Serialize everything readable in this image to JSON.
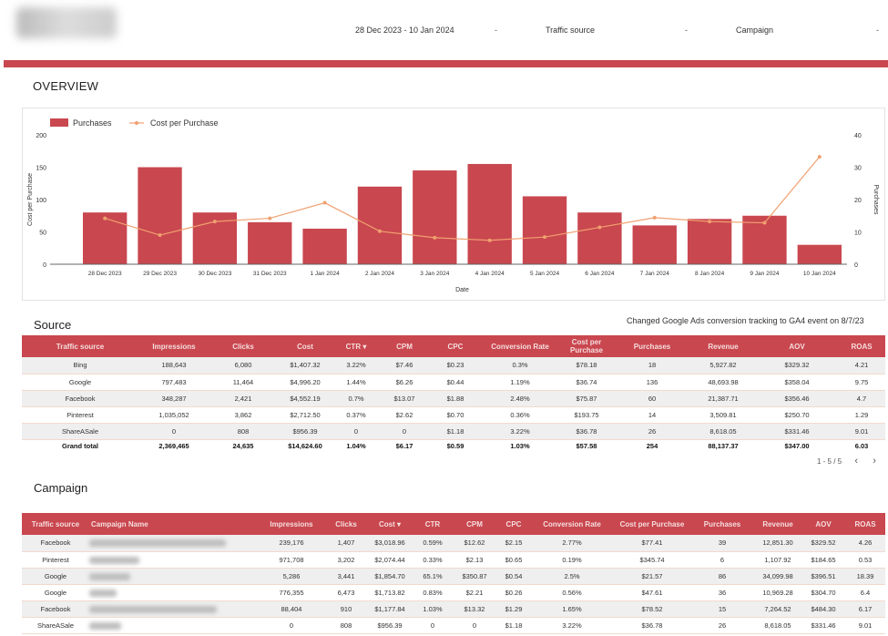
{
  "header": {
    "date_range": "28 Dec 2023 - 10 Jan 2024",
    "traffic_source_filter": "Traffic source",
    "campaign_filter": "Campaign",
    "dropdown_glyph": "-"
  },
  "overview": {
    "title": "OVERVIEW"
  },
  "chart_data": {
    "type": "bar",
    "categories": [
      "28 Dec 2023",
      "29 Dec 2023",
      "30 Dec 2023",
      "31 Dec 2023",
      "1 Jan 2024",
      "2 Jan 2024",
      "3 Jan 2024",
      "4 Jan 2024",
      "5 Jan 2024",
      "6 Jan 2024",
      "7 Jan 2024",
      "8 Jan 2024",
      "9 Jan 2024",
      "10 Jan 2024"
    ],
    "series": [
      {
        "name": "Purchases",
        "type": "bar",
        "axis": "right",
        "color": "#c9474f",
        "values": [
          16,
          30,
          16,
          13,
          11,
          24,
          29,
          31,
          21,
          16,
          12,
          14,
          15,
          6
        ]
      },
      {
        "name": "Cost per Purchase",
        "type": "line",
        "axis": "left",
        "color": "#f0a070",
        "values": [
          71,
          45,
          66,
          71,
          95,
          51,
          41,
          37,
          42,
          57,
          72,
          66,
          64,
          166
        ]
      }
    ],
    "xlabel": "Date",
    "ylabel_left": "Cost per Purchase",
    "ylim_left": [
      0,
      200
    ],
    "yticks_left": [
      "0",
      "50",
      "100",
      "150",
      "200"
    ],
    "ylabel_right": "Purchases",
    "ylim_right": [
      0,
      40
    ],
    "yticks_right": [
      "0",
      "10",
      "20",
      "30",
      "40"
    ],
    "legend": "top-left",
    "grid": false
  },
  "source": {
    "title": "Source",
    "note": "Changed Google Ads conversion tracking to GA4 event on 8/7/23",
    "columns": [
      "Traffic source",
      "Impressions",
      "Clicks",
      "Cost",
      "CTR ▾",
      "CPM",
      "CPC",
      "Conversion Rate",
      "Cost per Purchase",
      "Purchases",
      "Revenue",
      "AOV",
      "ROAS"
    ],
    "rows": [
      [
        "Bing",
        "188,643",
        "6,080",
        "$1,407.32",
        "3.22%",
        "$7.46",
        "$0.23",
        "0.3%",
        "$78.18",
        "18",
        "5,927.82",
        "$329.32",
        "4.21"
      ],
      [
        "Google",
        "797,483",
        "11,464",
        "$4,996.20",
        "1.44%",
        "$6.26",
        "$0.44",
        "1.19%",
        "$36.74",
        "136",
        "48,693.98",
        "$358.04",
        "9.75"
      ],
      [
        "Facebook",
        "348,287",
        "2,421",
        "$4,552.19",
        "0.7%",
        "$13.07",
        "$1.88",
        "2.48%",
        "$75.87",
        "60",
        "21,387.71",
        "$356.46",
        "4.7"
      ],
      [
        "Pinterest",
        "1,035,052",
        "3,862",
        "$2,712.50",
        "0.37%",
        "$2.62",
        "$0.70",
        "0.36%",
        "$193.75",
        "14",
        "3,509.81",
        "$250.70",
        "1.29"
      ],
      [
        "ShareASale",
        "0",
        "808",
        "$956.39",
        "0",
        "0",
        "$1.18",
        "3.22%",
        "$36.78",
        "26",
        "8,618.05",
        "$331.46",
        "9.01"
      ]
    ],
    "total": [
      "Grand total",
      "2,369,465",
      "24,635",
      "$14,624.60",
      "1.04%",
      "$6.17",
      "$0.59",
      "1.03%",
      "$57.58",
      "254",
      "88,137.37",
      "$347.00",
      "6.03"
    ],
    "pagination": "1 - 5 / 5",
    "prev": "‹",
    "next": "›"
  },
  "campaign": {
    "title": "Campaign",
    "columns": [
      "Traffic source",
      "Campaign Name",
      "Impressions",
      "Clicks",
      "Cost ▾",
      "CTR",
      "CPM",
      "CPC",
      "Conversion Rate",
      "Cost per Purchase",
      "Purchases",
      "Revenue",
      "AOV",
      "ROAS"
    ],
    "rows": [
      [
        "Facebook",
        "",
        "239,176",
        "1,407",
        "$3,018.96",
        "0.59%",
        "$12.62",
        "$2.15",
        "2.77%",
        "$77.41",
        "39",
        "12,851.30",
        "$329.52",
        "4.26"
      ],
      [
        "Pinterest",
        "",
        "971,708",
        "3,202",
        "$2,074.44",
        "0.33%",
        "$2.13",
        "$0.65",
        "0.19%",
        "$345.74",
        "6",
        "1,107.92",
        "$184.65",
        "0.53"
      ],
      [
        "Google",
        "",
        "5,286",
        "3,441",
        "$1,854.70",
        "65.1%",
        "$350.87",
        "$0.54",
        "2.5%",
        "$21.57",
        "86",
        "34,099.98",
        "$396.51",
        "18.39"
      ],
      [
        "Google",
        "",
        "776,355",
        "6,473",
        "$1,713.82",
        "0.83%",
        "$2.21",
        "$0.26",
        "0.56%",
        "$47.61",
        "36",
        "10,969.28",
        "$304.70",
        "6.4"
      ],
      [
        "Facebook",
        "",
        "88,404",
        "910",
        "$1,177.84",
        "1.03%",
        "$13.32",
        "$1.29",
        "1.65%",
        "$78.52",
        "15",
        "7,264.52",
        "$484.30",
        "6.17"
      ],
      [
        "ShareASale",
        "",
        "0",
        "808",
        "$956.39",
        "0",
        "0",
        "$1.18",
        "3.22%",
        "$36.78",
        "26",
        "8,618.05",
        "$331.46",
        "9.01"
      ]
    ]
  }
}
